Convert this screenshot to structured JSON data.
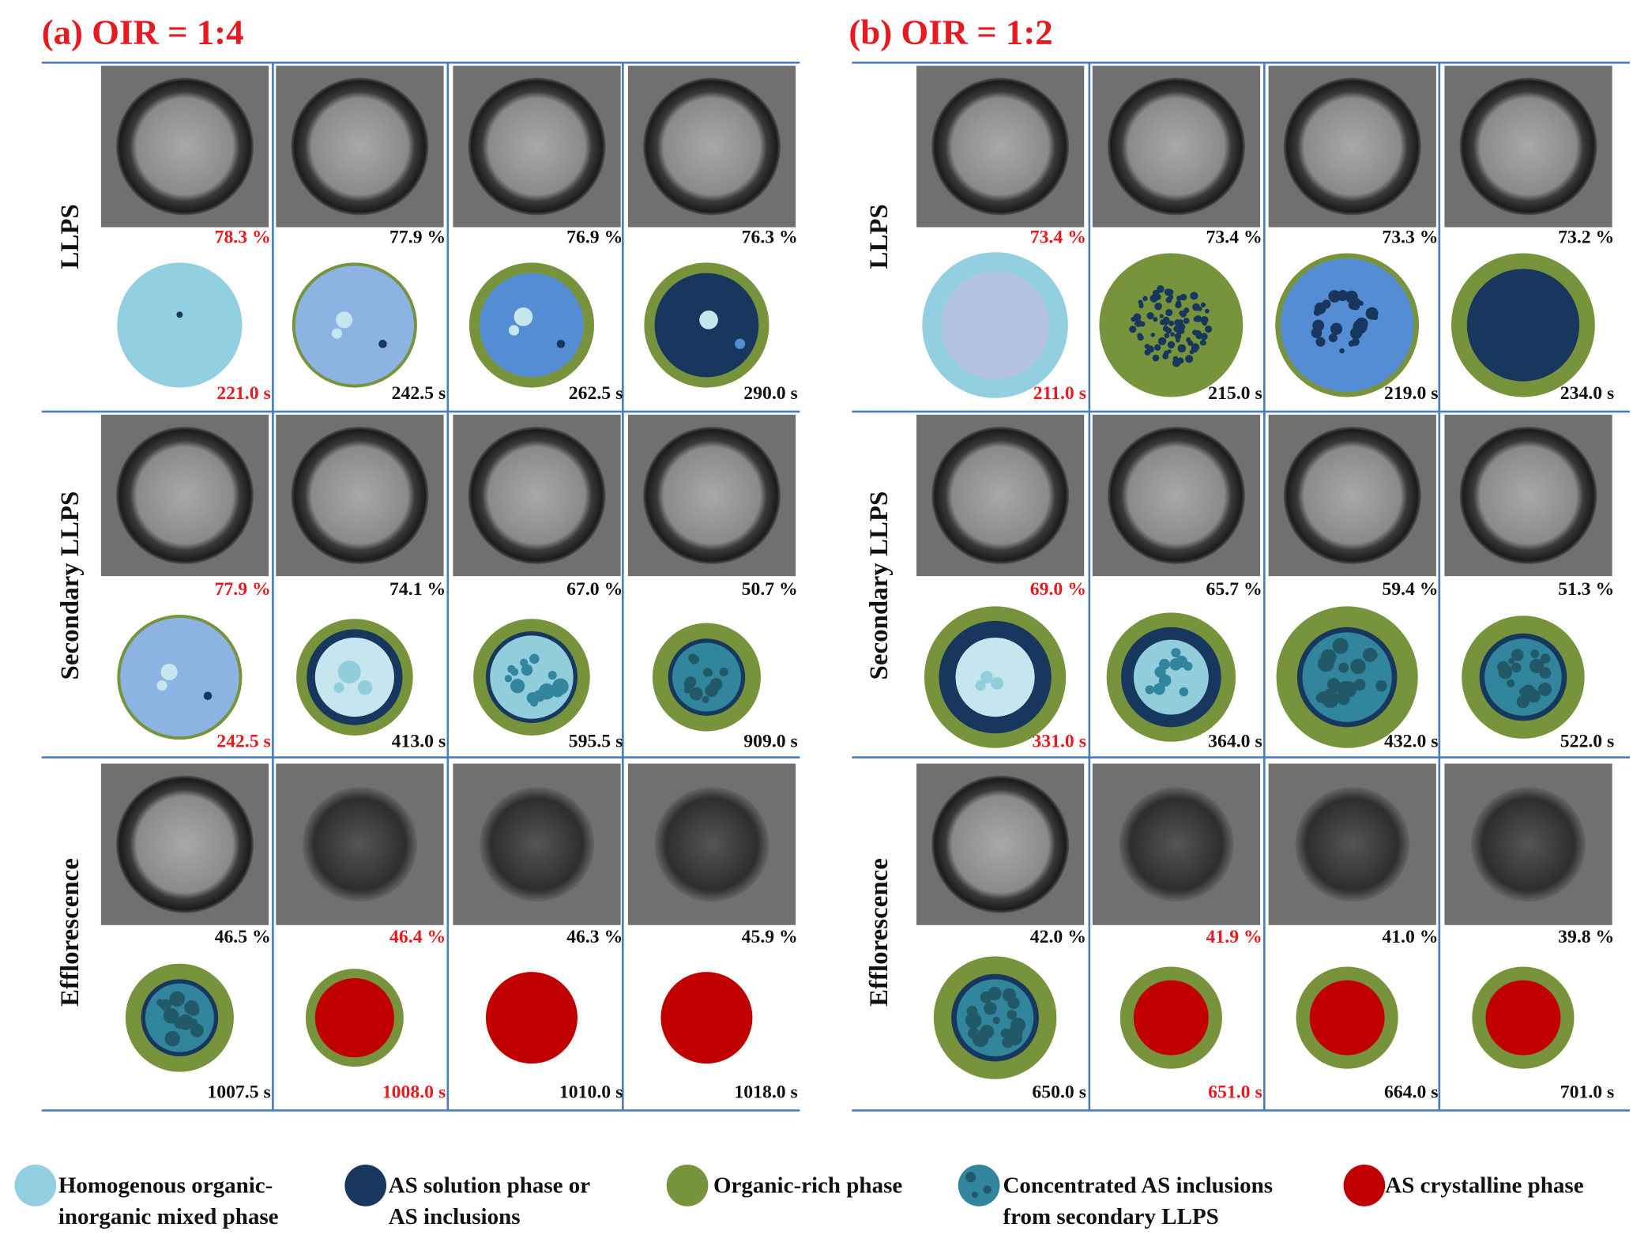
{
  "panels": [
    {
      "title": "(a) OIR = 1:4",
      "rows": [
        {
          "label": "LLPS",
          "cells": [
            {
              "rh": "78.3 %",
              "time": "221.0 s",
              "highlight": true
            },
            {
              "rh": "77.9 %",
              "time": "242.5 s",
              "highlight": false
            },
            {
              "rh": "76.9 %",
              "time": "262.5 s",
              "highlight": false
            },
            {
              "rh": "76.3 %",
              "time": "290.0 s",
              "highlight": false
            }
          ]
        },
        {
          "label": "Secondary LLPS",
          "cells": [
            {
              "rh": "77.9 %",
              "time": "242.5 s",
              "highlight": true
            },
            {
              "rh": "74.1 %",
              "time": "413.0 s",
              "highlight": false
            },
            {
              "rh": "67.0 %",
              "time": "595.5 s",
              "highlight": false
            },
            {
              "rh": "50.7 %",
              "time": "909.0 s",
              "highlight": false
            }
          ]
        },
        {
          "label": "Efflorescence",
          "cells": [
            {
              "rh": "46.5 %",
              "time": "1007.5 s",
              "highlight": false
            },
            {
              "rh": "46.4 %",
              "time": "1008.0 s",
              "highlight": true
            },
            {
              "rh": "46.3 %",
              "time": "1010.0 s",
              "highlight": false
            },
            {
              "rh": "45.9 %",
              "time": "1018.0 s",
              "highlight": false
            }
          ]
        }
      ]
    },
    {
      "title": "(b) OIR = 1:2",
      "rows": [
        {
          "label": "LLPS",
          "cells": [
            {
              "rh": "73.4 %",
              "time": "211.0 s",
              "highlight": true
            },
            {
              "rh": "73.4 %",
              "time": "215.0 s",
              "highlight": false
            },
            {
              "rh": "73.3 %",
              "time": "219.0 s",
              "highlight": false
            },
            {
              "rh": "73.2 %",
              "time": "234.0 s",
              "highlight": false
            }
          ]
        },
        {
          "label": "Secondary LLPS",
          "cells": [
            {
              "rh": "69.0 %",
              "time": "331.0 s",
              "highlight": true
            },
            {
              "rh": "65.7 %",
              "time": "364.0 s",
              "highlight": false
            },
            {
              "rh": "59.4 %",
              "time": "432.0 s",
              "highlight": false
            },
            {
              "rh": "51.3 %",
              "time": "522.0 s",
              "highlight": false
            }
          ]
        },
        {
          "label": "Efflorescence",
          "cells": [
            {
              "rh": "42.0 %",
              "time": "650.0 s",
              "highlight": false
            },
            {
              "rh": "41.9 %",
              "time": "651.0 s",
              "highlight": true
            },
            {
              "rh": "41.0 %",
              "time": "664.0 s",
              "highlight": false
            },
            {
              "rh": "39.8 %",
              "time": "701.0 s",
              "highlight": false
            }
          ]
        }
      ]
    }
  ],
  "legend": [
    {
      "lines": [
        "Homogenous organic-",
        "inorganic mixed phase"
      ],
      "color": "#92cfe0"
    },
    {
      "lines": [
        "AS solution phase or",
        "AS inclusions"
      ],
      "color": "#17375e"
    },
    {
      "lines": [
        "Organic-rich phase"
      ],
      "color": "#77933c"
    },
    {
      "lines": [
        "Concentrated AS inclusions",
        "from secondary LLPS"
      ],
      "color": "#31859c"
    },
    {
      "lines": [
        "AS crystalline phase"
      ],
      "color": "#c00000"
    }
  ],
  "colors": {
    "highlight": "#e8191f",
    "text": "#111111",
    "divider": "#4a7ebb"
  }
}
